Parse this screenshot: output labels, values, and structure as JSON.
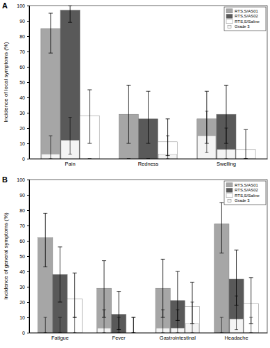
{
  "chart_data": [
    {
      "type": "bar",
      "title": "A",
      "y_label": "Incidence of local symptoms (%)",
      "categories": [
        "Pain",
        "Redness",
        "Swelling"
      ],
      "series": [
        {
          "name": "RTS,S/AS01",
          "color": "#a6a6a6",
          "values": [
            85,
            29,
            26
          ],
          "ci_low": [
            69,
            10,
            10
          ],
          "ci_high": [
            95,
            48,
            44
          ]
        },
        {
          "name": "RTS,S/AS02",
          "color": "#595959",
          "values": [
            97,
            26,
            29
          ],
          "ci_low": [
            89,
            10,
            10
          ],
          "ci_high": [
            100,
            44,
            48
          ]
        },
        {
          "name": "RTS,S/Saline",
          "color": "#ffffff",
          "values": [
            28,
            11,
            6
          ],
          "ci_low": [
            10,
            2,
            0
          ],
          "ci_high": [
            45,
            26,
            19
          ]
        }
      ],
      "overlay": {
        "name": "Grade 3",
        "color": "#f4f4f4",
        "values": [
          [
            3,
            0,
            15
          ],
          [
            12,
            0,
            6
          ],
          [
            0,
            3,
            0
          ]
        ],
        "ci_low": [
          [
            0,
            0,
            4
          ],
          [
            3,
            0,
            0
          ],
          [
            0,
            0,
            0
          ]
        ],
        "ci_high": [
          [
            15,
            0,
            31
          ],
          [
            27,
            0,
            20
          ],
          [
            0,
            15,
            0
          ]
        ]
      },
      "ylim": [
        0,
        100
      ],
      "yticks": [
        0,
        10,
        20,
        30,
        40,
        50,
        60,
        70,
        80,
        90,
        100
      ],
      "grid": false,
      "legend": "top-right"
    },
    {
      "type": "bar",
      "title": "B",
      "y_label": "Incidence of general symptoms (%)",
      "categories": [
        "Fatigue",
        "Fever",
        "Gastrointestinal",
        "Headache"
      ],
      "series": [
        {
          "name": "RTS,S/AS01",
          "color": "#a6a6a6",
          "values": [
            62,
            29,
            29,
            71
          ],
          "ci_low": [
            43,
            10,
            10,
            52
          ],
          "ci_high": [
            78,
            47,
            48,
            85
          ]
        },
        {
          "name": "RTS,S/AS02",
          "color": "#595959",
          "values": [
            38,
            12,
            21,
            35
          ],
          "ci_low": [
            20,
            2,
            8,
            18
          ],
          "ci_high": [
            56,
            27,
            40,
            54
          ]
        },
        {
          "name": "RTS,S/Saline",
          "color": "#ffffff",
          "values": [
            22,
            0,
            17,
            19
          ],
          "ci_low": [
            10,
            0,
            6,
            6
          ],
          "ci_high": [
            39,
            10,
            33,
            36
          ]
        }
      ],
      "overlay": {
        "name": "Grade 3",
        "color": "#f4f4f4",
        "values": [
          [
            0,
            3,
            3,
            0
          ],
          [
            0,
            0,
            3,
            9
          ],
          [
            0,
            0,
            6,
            0
          ]
        ],
        "ci_low": [
          [
            0,
            0,
            0,
            0
          ],
          [
            0,
            0,
            0,
            2
          ],
          [
            0,
            0,
            0,
            0
          ]
        ],
        "ci_high": [
          [
            10,
            15,
            15,
            10
          ],
          [
            10,
            10,
            15,
            24
          ],
          [
            10,
            10,
            20,
            10
          ]
        ]
      },
      "ylim": [
        0,
        100
      ],
      "yticks": [
        0,
        10,
        20,
        30,
        40,
        50,
        60,
        70,
        80,
        90,
        100
      ],
      "grid": false,
      "legend": "top-right"
    }
  ]
}
